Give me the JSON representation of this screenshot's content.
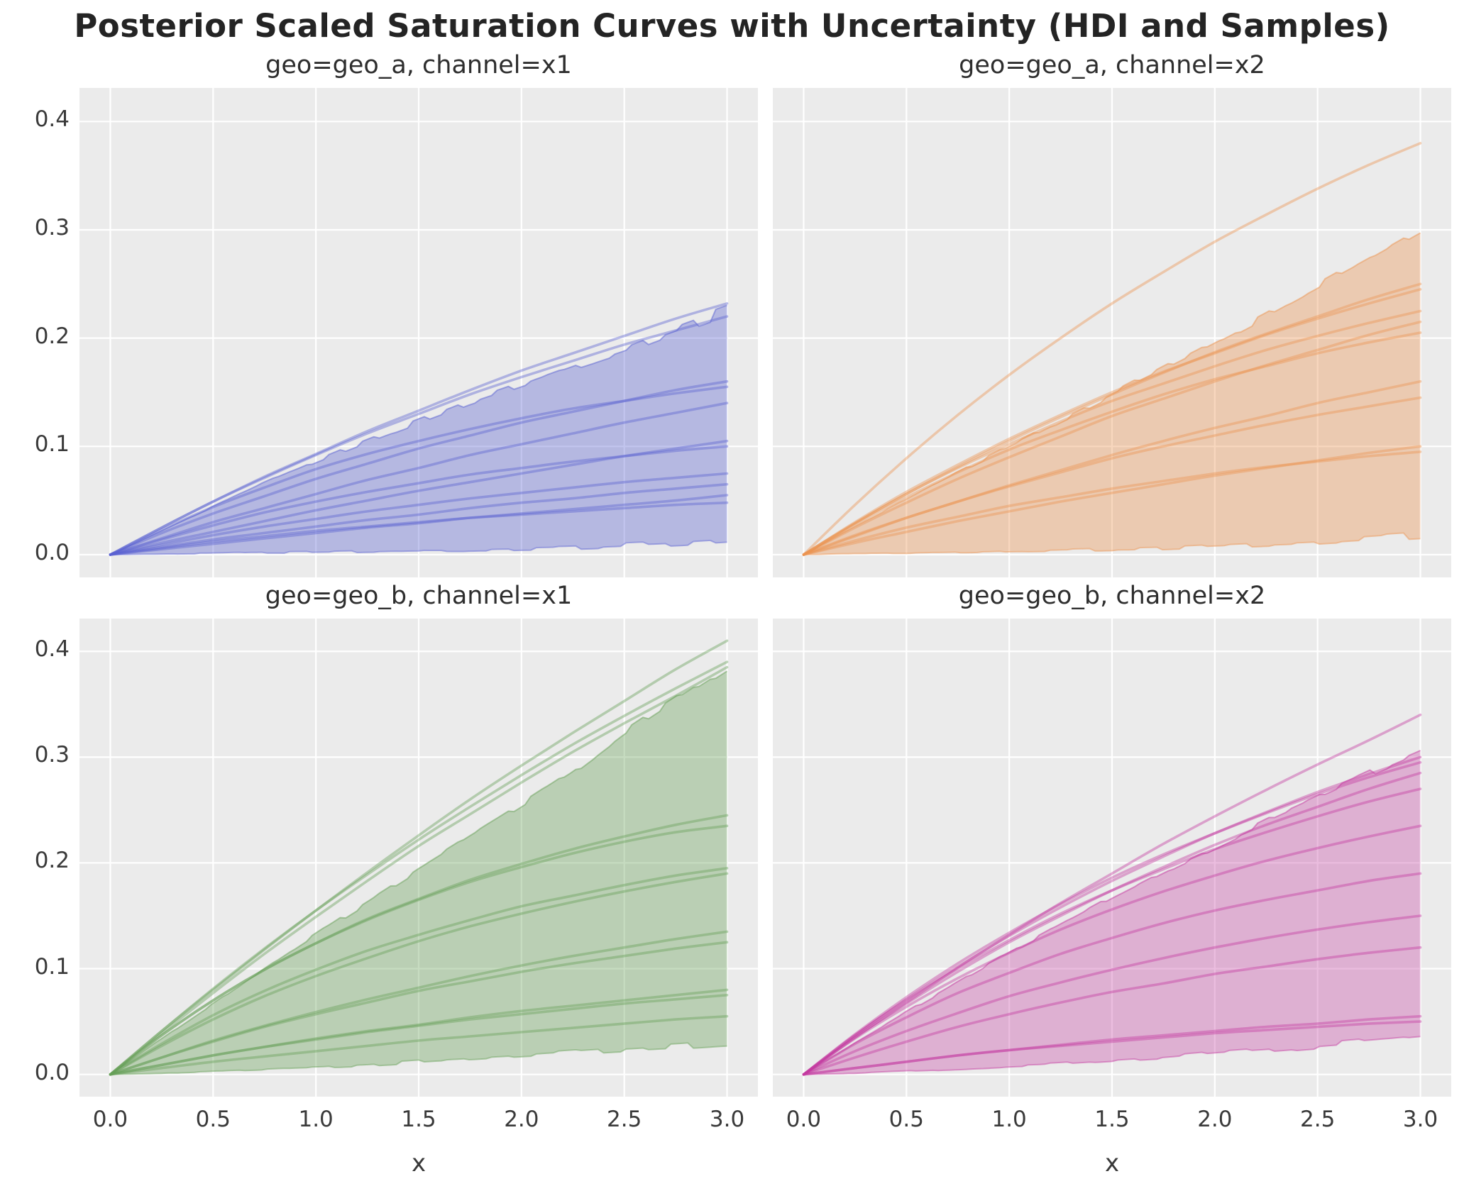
{
  "figure": {
    "suptitle": "Posterior Scaled Saturation Curves with Uncertainty (HDI and Samples)",
    "xlabel": "x",
    "background": "#ffffff",
    "axes_background": "#ebebeb",
    "grid_color": "#ffffff",
    "tick_color": "#3a3a3a",
    "title_color": "#242424"
  },
  "axes": {
    "xlim": [
      -0.15,
      3.15
    ],
    "ylim": [
      -0.021,
      0.431
    ],
    "xtick_values": [
      0,
      0.5,
      1,
      1.5,
      2,
      2.5,
      3
    ],
    "xtick_labels": [
      "0.0",
      "0.5",
      "1.0",
      "1.5",
      "2.0",
      "2.5",
      "3.0"
    ],
    "ytick_values": [
      0,
      0.1,
      0.2,
      0.3,
      0.4
    ],
    "ytick_labels": [
      "0.0",
      "0.1",
      "0.2",
      "0.3",
      "0.4"
    ],
    "grid": true,
    "shared_x": true,
    "shared_y": true
  },
  "chart_data": [
    {
      "type": "line+hdi-band",
      "geo": "geo_a",
      "channel": "x1",
      "title": "geo=geo_a, channel=x1",
      "color": "#5a62d2",
      "fill": "#5a62d2",
      "x": [
        0,
        0.25,
        0.5,
        0.75,
        1.0,
        1.25,
        1.5,
        1.75,
        2.0,
        2.25,
        2.5,
        2.75,
        3.0
      ],
      "band_upper": [
        0,
        0.022,
        0.044,
        0.066,
        0.086,
        0.105,
        0.123,
        0.141,
        0.157,
        0.174,
        0.19,
        0.208,
        0.225
      ],
      "band_lower": [
        0,
        0.0005,
        0.001,
        0.002,
        0.002,
        0.003,
        0.004,
        0.004,
        0.005,
        0.006,
        0.008,
        0.01,
        0.013
      ],
      "samples": [
        [
          0,
          0.025,
          0.049,
          0.072,
          0.093,
          0.114,
          0.133,
          0.152,
          0.17,
          0.186,
          0.202,
          0.218,
          0.232
        ],
        [
          0,
          0.025,
          0.049,
          0.071,
          0.092,
          0.112,
          0.13,
          0.148,
          0.164,
          0.179,
          0.194,
          0.207,
          0.22
        ],
        [
          0,
          0.02,
          0.038,
          0.054,
          0.07,
          0.084,
          0.098,
          0.11,
          0.122,
          0.132,
          0.142,
          0.152,
          0.16
        ],
        [
          0,
          0.023,
          0.044,
          0.062,
          0.079,
          0.093,
          0.105,
          0.116,
          0.126,
          0.135,
          0.142,
          0.149,
          0.155
        ],
        [
          0,
          0.015,
          0.03,
          0.043,
          0.056,
          0.069,
          0.08,
          0.092,
          0.102,
          0.112,
          0.122,
          0.131,
          0.14
        ],
        [
          0,
          0.011,
          0.021,
          0.031,
          0.041,
          0.05,
          0.059,
          0.067,
          0.075,
          0.083,
          0.091,
          0.098,
          0.105
        ],
        [
          0,
          0.014,
          0.027,
          0.039,
          0.049,
          0.058,
          0.066,
          0.074,
          0.08,
          0.086,
          0.091,
          0.096,
          0.1
        ],
        [
          0,
          0.009,
          0.018,
          0.026,
          0.033,
          0.04,
          0.046,
          0.052,
          0.057,
          0.062,
          0.067,
          0.071,
          0.075
        ],
        [
          0,
          0.007,
          0.014,
          0.02,
          0.026,
          0.032,
          0.037,
          0.043,
          0.048,
          0.052,
          0.057,
          0.061,
          0.065
        ],
        [
          0,
          0.005,
          0.01,
          0.015,
          0.02,
          0.025,
          0.029,
          0.034,
          0.038,
          0.042,
          0.046,
          0.05,
          0.055
        ],
        [
          0,
          0.006,
          0.012,
          0.017,
          0.022,
          0.026,
          0.03,
          0.034,
          0.037,
          0.04,
          0.043,
          0.046,
          0.048
        ]
      ]
    },
    {
      "type": "line+hdi-band",
      "geo": "geo_a",
      "channel": "x2",
      "title": "geo=geo_a, channel=x2",
      "color": "#ec9350",
      "fill": "#ec9350",
      "x": [
        0,
        0.25,
        0.5,
        0.75,
        1.0,
        1.25,
        1.5,
        1.75,
        2.0,
        2.25,
        2.5,
        2.75,
        3.0
      ],
      "band_upper": [
        0,
        0.026,
        0.051,
        0.076,
        0.1,
        0.124,
        0.148,
        0.172,
        0.196,
        0.221,
        0.247,
        0.273,
        0.3
      ],
      "band_lower": [
        0,
        0.001,
        0.001,
        0.002,
        0.003,
        0.004,
        0.005,
        0.006,
        0.008,
        0.01,
        0.012,
        0.015,
        0.018
      ],
      "samples": [
        [
          0,
          0.046,
          0.089,
          0.129,
          0.166,
          0.2,
          0.232,
          0.261,
          0.289,
          0.314,
          0.338,
          0.36,
          0.38
        ],
        [
          0,
          0.029,
          0.056,
          0.081,
          0.105,
          0.127,
          0.148,
          0.168,
          0.187,
          0.204,
          0.22,
          0.236,
          0.25
        ],
        [
          0,
          0.03,
          0.058,
          0.083,
          0.107,
          0.129,
          0.15,
          0.169,
          0.186,
          0.203,
          0.218,
          0.232,
          0.245
        ],
        [
          0,
          0.029,
          0.056,
          0.08,
          0.102,
          0.123,
          0.142,
          0.158,
          0.174,
          0.189,
          0.202,
          0.214,
          0.225
        ],
        [
          0,
          0.025,
          0.048,
          0.07,
          0.09,
          0.109,
          0.128,
          0.144,
          0.16,
          0.175,
          0.189,
          0.203,
          0.215
        ],
        [
          0,
          0.028,
          0.053,
          0.076,
          0.097,
          0.115,
          0.132,
          0.148,
          0.162,
          0.174,
          0.186,
          0.196,
          0.205
        ],
        [
          0,
          0.017,
          0.034,
          0.049,
          0.064,
          0.078,
          0.092,
          0.105,
          0.117,
          0.128,
          0.14,
          0.15,
          0.16
        ],
        [
          0,
          0.018,
          0.034,
          0.049,
          0.063,
          0.076,
          0.089,
          0.1,
          0.11,
          0.12,
          0.129,
          0.137,
          0.145
        ],
        [
          0,
          0.011,
          0.021,
          0.031,
          0.04,
          0.049,
          0.057,
          0.065,
          0.073,
          0.08,
          0.087,
          0.094,
          0.1
        ],
        [
          0,
          0.013,
          0.025,
          0.035,
          0.045,
          0.053,
          0.061,
          0.068,
          0.075,
          0.081,
          0.086,
          0.091,
          0.095
        ]
      ]
    },
    {
      "type": "line+hdi-band",
      "geo": "geo_b",
      "channel": "x1",
      "title": "geo=geo_b, channel=x1",
      "color": "#67a057",
      "fill": "#67a057",
      "x": [
        0,
        0.25,
        0.5,
        0.75,
        1.0,
        1.25,
        1.5,
        1.75,
        2.0,
        2.25,
        2.5,
        2.75,
        3.0
      ],
      "band_upper": [
        0,
        0.034,
        0.067,
        0.1,
        0.132,
        0.163,
        0.194,
        0.224,
        0.254,
        0.285,
        0.322,
        0.354,
        0.385
      ],
      "band_lower": [
        0,
        0.001,
        0.003,
        0.005,
        0.007,
        0.009,
        0.012,
        0.015,
        0.018,
        0.021,
        0.024,
        0.027,
        0.03
      ],
      "samples": [
        [
          0,
          0.041,
          0.08,
          0.118,
          0.155,
          0.191,
          0.226,
          0.26,
          0.292,
          0.323,
          0.353,
          0.383,
          0.41
        ],
        [
          0,
          0.041,
          0.081,
          0.119,
          0.155,
          0.189,
          0.222,
          0.253,
          0.283,
          0.312,
          0.339,
          0.365,
          0.39
        ],
        [
          0,
          0.039,
          0.077,
          0.114,
          0.149,
          0.183,
          0.216,
          0.246,
          0.276,
          0.305,
          0.332,
          0.358,
          0.385
        ],
        [
          0,
          0.037,
          0.07,
          0.099,
          0.124,
          0.147,
          0.166,
          0.184,
          0.199,
          0.213,
          0.225,
          0.236,
          0.245
        ],
        [
          0,
          0.037,
          0.07,
          0.099,
          0.124,
          0.146,
          0.165,
          0.182,
          0.196,
          0.209,
          0.22,
          0.229,
          0.235
        ],
        [
          0,
          0.029,
          0.056,
          0.079,
          0.099,
          0.117,
          0.132,
          0.146,
          0.159,
          0.169,
          0.179,
          0.188,
          0.195
        ],
        [
          0,
          0.027,
          0.052,
          0.074,
          0.093,
          0.11,
          0.126,
          0.14,
          0.152,
          0.163,
          0.173,
          0.182,
          0.19
        ],
        [
          0,
          0.016,
          0.032,
          0.046,
          0.059,
          0.071,
          0.082,
          0.093,
          0.103,
          0.112,
          0.12,
          0.128,
          0.135
        ],
        [
          0,
          0.016,
          0.031,
          0.045,
          0.057,
          0.068,
          0.079,
          0.088,
          0.097,
          0.105,
          0.112,
          0.119,
          0.125
        ],
        [
          0,
          0.009,
          0.018,
          0.026,
          0.034,
          0.041,
          0.047,
          0.054,
          0.06,
          0.065,
          0.07,
          0.075,
          0.08
        ],
        [
          0,
          0.009,
          0.018,
          0.026,
          0.033,
          0.04,
          0.046,
          0.052,
          0.057,
          0.062,
          0.067,
          0.071,
          0.075
        ],
        [
          0,
          0.006,
          0.012,
          0.017,
          0.022,
          0.027,
          0.032,
          0.036,
          0.04,
          0.044,
          0.048,
          0.052,
          0.055
        ]
      ]
    },
    {
      "type": "line+hdi-band",
      "geo": "geo_b",
      "channel": "x2",
      "title": "geo=geo_b, channel=x2",
      "color": "#c4399f",
      "fill": "#c94da8",
      "x": [
        0,
        0.25,
        0.5,
        0.75,
        1.0,
        1.25,
        1.5,
        1.75,
        2.0,
        2.25,
        2.5,
        2.75,
        3.0
      ],
      "band_upper": [
        0,
        0.03,
        0.059,
        0.087,
        0.115,
        0.141,
        0.167,
        0.192,
        0.216,
        0.24,
        0.262,
        0.284,
        0.305
      ],
      "band_lower": [
        0,
        0.001,
        0.003,
        0.005,
        0.008,
        0.01,
        0.013,
        0.016,
        0.02,
        0.023,
        0.027,
        0.031,
        0.035
      ],
      "samples": [
        [
          0,
          0.035,
          0.068,
          0.101,
          0.132,
          0.162,
          0.19,
          0.218,
          0.244,
          0.269,
          0.293,
          0.316,
          0.34
        ],
        [
          0,
          0.037,
          0.071,
          0.102,
          0.131,
          0.158,
          0.183,
          0.206,
          0.228,
          0.248,
          0.267,
          0.284,
          0.3
        ],
        [
          0,
          0.038,
          0.073,
          0.105,
          0.134,
          0.161,
          0.186,
          0.208,
          0.228,
          0.247,
          0.265,
          0.281,
          0.295
        ],
        [
          0,
          0.035,
          0.067,
          0.097,
          0.125,
          0.15,
          0.174,
          0.196,
          0.217,
          0.236,
          0.253,
          0.27,
          0.285
        ],
        [
          0,
          0.037,
          0.07,
          0.1,
          0.127,
          0.152,
          0.174,
          0.194,
          0.213,
          0.229,
          0.244,
          0.258,
          0.27
        ],
        [
          0,
          0.034,
          0.064,
          0.091,
          0.115,
          0.137,
          0.156,
          0.173,
          0.188,
          0.202,
          0.214,
          0.225,
          0.235
        ],
        [
          0,
          0.029,
          0.054,
          0.077,
          0.096,
          0.114,
          0.129,
          0.143,
          0.155,
          0.165,
          0.174,
          0.183,
          0.19
        ],
        [
          0,
          0.022,
          0.041,
          0.058,
          0.074,
          0.087,
          0.099,
          0.11,
          0.12,
          0.129,
          0.137,
          0.144,
          0.15
        ],
        [
          0,
          0.016,
          0.031,
          0.045,
          0.057,
          0.068,
          0.078,
          0.086,
          0.095,
          0.102,
          0.109,
          0.115,
          0.12
        ],
        [
          0,
          0.006,
          0.012,
          0.018,
          0.023,
          0.028,
          0.033,
          0.037,
          0.041,
          0.045,
          0.048,
          0.052,
          0.055
        ],
        [
          0,
          0.006,
          0.012,
          0.018,
          0.023,
          0.027,
          0.031,
          0.035,
          0.039,
          0.042,
          0.045,
          0.048,
          0.05
        ]
      ]
    }
  ]
}
